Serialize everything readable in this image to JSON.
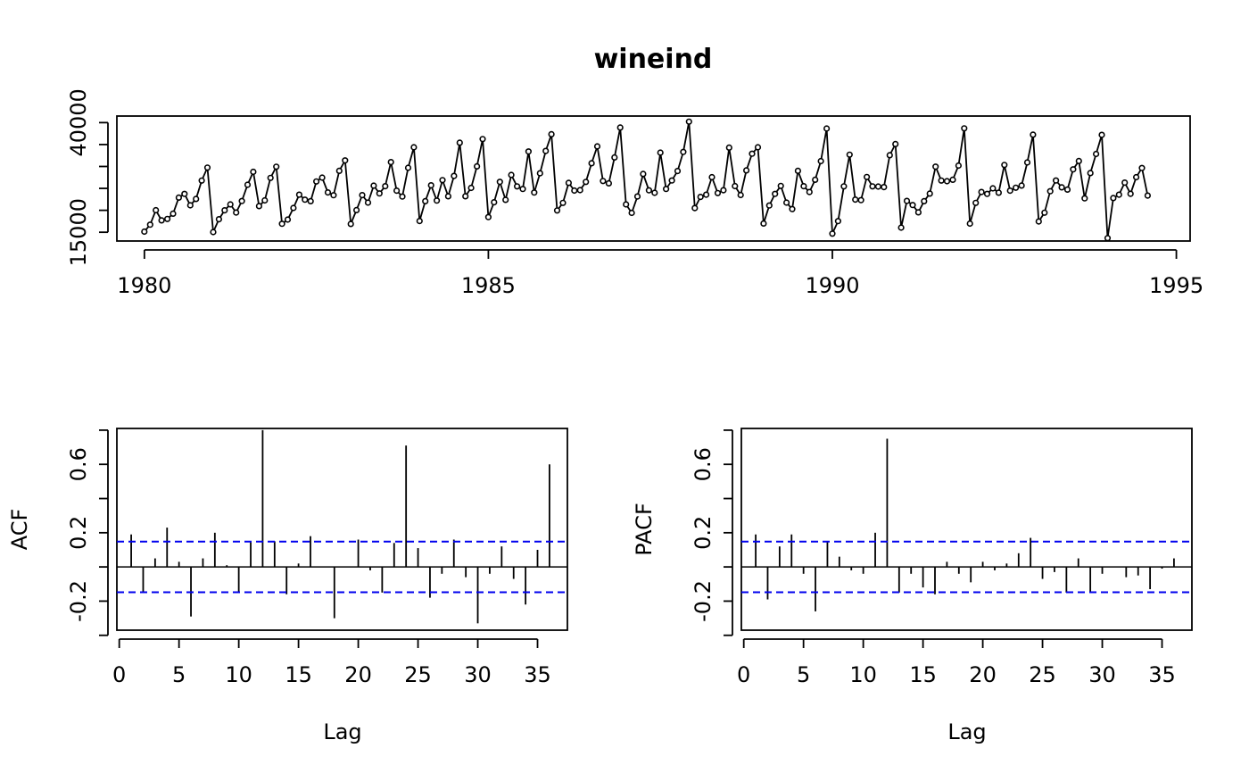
{
  "chart_data": [
    {
      "type": "line",
      "title": "wineind",
      "xlabel": "",
      "ylabel": "",
      "x_ticks": [
        "1980",
        "1985",
        "1990",
        "1995"
      ],
      "y_ticks": [
        "15000",
        "40000"
      ],
      "xlim": [
        1979.6,
        1995.2
      ],
      "ylim": [
        13000,
        41500
      ],
      "start": 1980.0,
      "frequency": 12,
      "values": [
        15136,
        16733,
        20016,
        17708,
        18019,
        19227,
        22893,
        23739,
        21133,
        22591,
        26786,
        29740,
        15028,
        17977,
        20008,
        21354,
        19498,
        22125,
        25817,
        28779,
        20960,
        22254,
        27392,
        29945,
        16933,
        17892,
        20533,
        23569,
        22417,
        22084,
        26580,
        27454,
        24081,
        23451,
        28991,
        31386,
        16896,
        20045,
        23471,
        21747,
        25621,
        23859,
        25500,
        30998,
        24475,
        23145,
        29701,
        34365,
        17556,
        22077,
        25702,
        22214,
        26886,
        23191,
        27831,
        35406,
        23195,
        25110,
        30009,
        36242,
        18450,
        21845,
        26488,
        22394,
        28057,
        25451,
        24872,
        33424,
        24052,
        28449,
        33533,
        37351,
        19969,
        21701,
        26249,
        24493,
        24603,
        26485,
        30723,
        34569,
        26689,
        26157,
        32064,
        38870,
        21337,
        19419,
        23166,
        28286,
        24570,
        24001,
        33151,
        24878,
        26804,
        28967,
        33311,
        40226,
        20504,
        23060,
        23562,
        27562,
        23940,
        24584,
        34303,
        25517,
        23494,
        29095,
        32903,
        34379,
        16991,
        21109,
        23740,
        25552,
        21752,
        20294,
        29009,
        25500,
        24166,
        26960,
        31222,
        38641,
        14672,
        17543,
        25453,
        32683,
        22449,
        22316,
        27595,
        25451,
        25421,
        25288,
        32568,
        35110,
        16052,
        22146,
        21198,
        19543,
        22084,
        23816,
        29961,
        26773,
        26635,
        26972,
        30207,
        38687,
        16974,
        21697,
        24179,
        23757,
        25013,
        24019,
        30345,
        24488,
        25156,
        25650,
        30923,
        37240,
        17466,
        19463,
        24352,
        26805,
        25236,
        24735,
        29356,
        31234,
        22724,
        28496,
        32857,
        37198,
        13652,
        22784,
        23565,
        26323,
        23779,
        27549,
        29660,
        23356
      ]
    },
    {
      "type": "bar",
      "xlabel": "Lag",
      "ylabel": "ACF",
      "x_ticks": [
        "0",
        "5",
        "10",
        "15",
        "20",
        "25",
        "30",
        "35"
      ],
      "y_ticks": [
        "-0.2",
        "0.2",
        "0.6"
      ],
      "xlim": [
        -0.2,
        37.5
      ],
      "ylim": [
        -0.37,
        0.81
      ],
      "ci": 0.148,
      "lags": [
        1,
        2,
        3,
        4,
        5,
        6,
        7,
        8,
        9,
        10,
        11,
        12,
        13,
        14,
        15,
        16,
        17,
        18,
        19,
        20,
        21,
        22,
        23,
        24,
        25,
        26,
        27,
        28,
        29,
        30,
        31,
        32,
        33,
        34,
        35,
        36
      ],
      "values": [
        0.19,
        -0.15,
        0.05,
        0.23,
        0.03,
        -0.29,
        0.05,
        0.2,
        0.01,
        -0.15,
        0.15,
        0.8,
        0.15,
        -0.16,
        0.02,
        0.18,
        0.0,
        -0.3,
        0.0,
        0.16,
        -0.02,
        -0.15,
        0.14,
        0.71,
        0.11,
        -0.18,
        -0.04,
        0.16,
        -0.06,
        -0.33,
        -0.04,
        0.12,
        -0.07,
        -0.22,
        0.1,
        0.6
      ]
    },
    {
      "type": "bar",
      "xlabel": "Lag",
      "ylabel": "PACF",
      "x_ticks": [
        "0",
        "5",
        "10",
        "15",
        "20",
        "25",
        "30",
        "35"
      ],
      "y_ticks": [
        "-0.2",
        "0.2",
        "0.6"
      ],
      "xlim": [
        -0.2,
        37.5
      ],
      "ylim": [
        -0.37,
        0.81
      ],
      "ci": 0.148,
      "lags": [
        1,
        2,
        3,
        4,
        5,
        6,
        7,
        8,
        9,
        10,
        11,
        12,
        13,
        14,
        15,
        16,
        17,
        18,
        19,
        20,
        21,
        22,
        23,
        24,
        25,
        26,
        27,
        28,
        29,
        30,
        31,
        32,
        33,
        34,
        35,
        36
      ],
      "values": [
        0.19,
        -0.19,
        0.12,
        0.19,
        -0.04,
        -0.26,
        0.15,
        0.06,
        -0.02,
        -0.04,
        0.2,
        0.75,
        -0.15,
        -0.04,
        -0.12,
        -0.16,
        0.03,
        -0.04,
        -0.09,
        0.03,
        -0.02,
        0.02,
        0.08,
        0.17,
        -0.07,
        -0.03,
        -0.15,
        0.05,
        -0.15,
        -0.04,
        0.0,
        -0.06,
        -0.05,
        -0.13,
        -0.01,
        0.05
      ]
    }
  ]
}
